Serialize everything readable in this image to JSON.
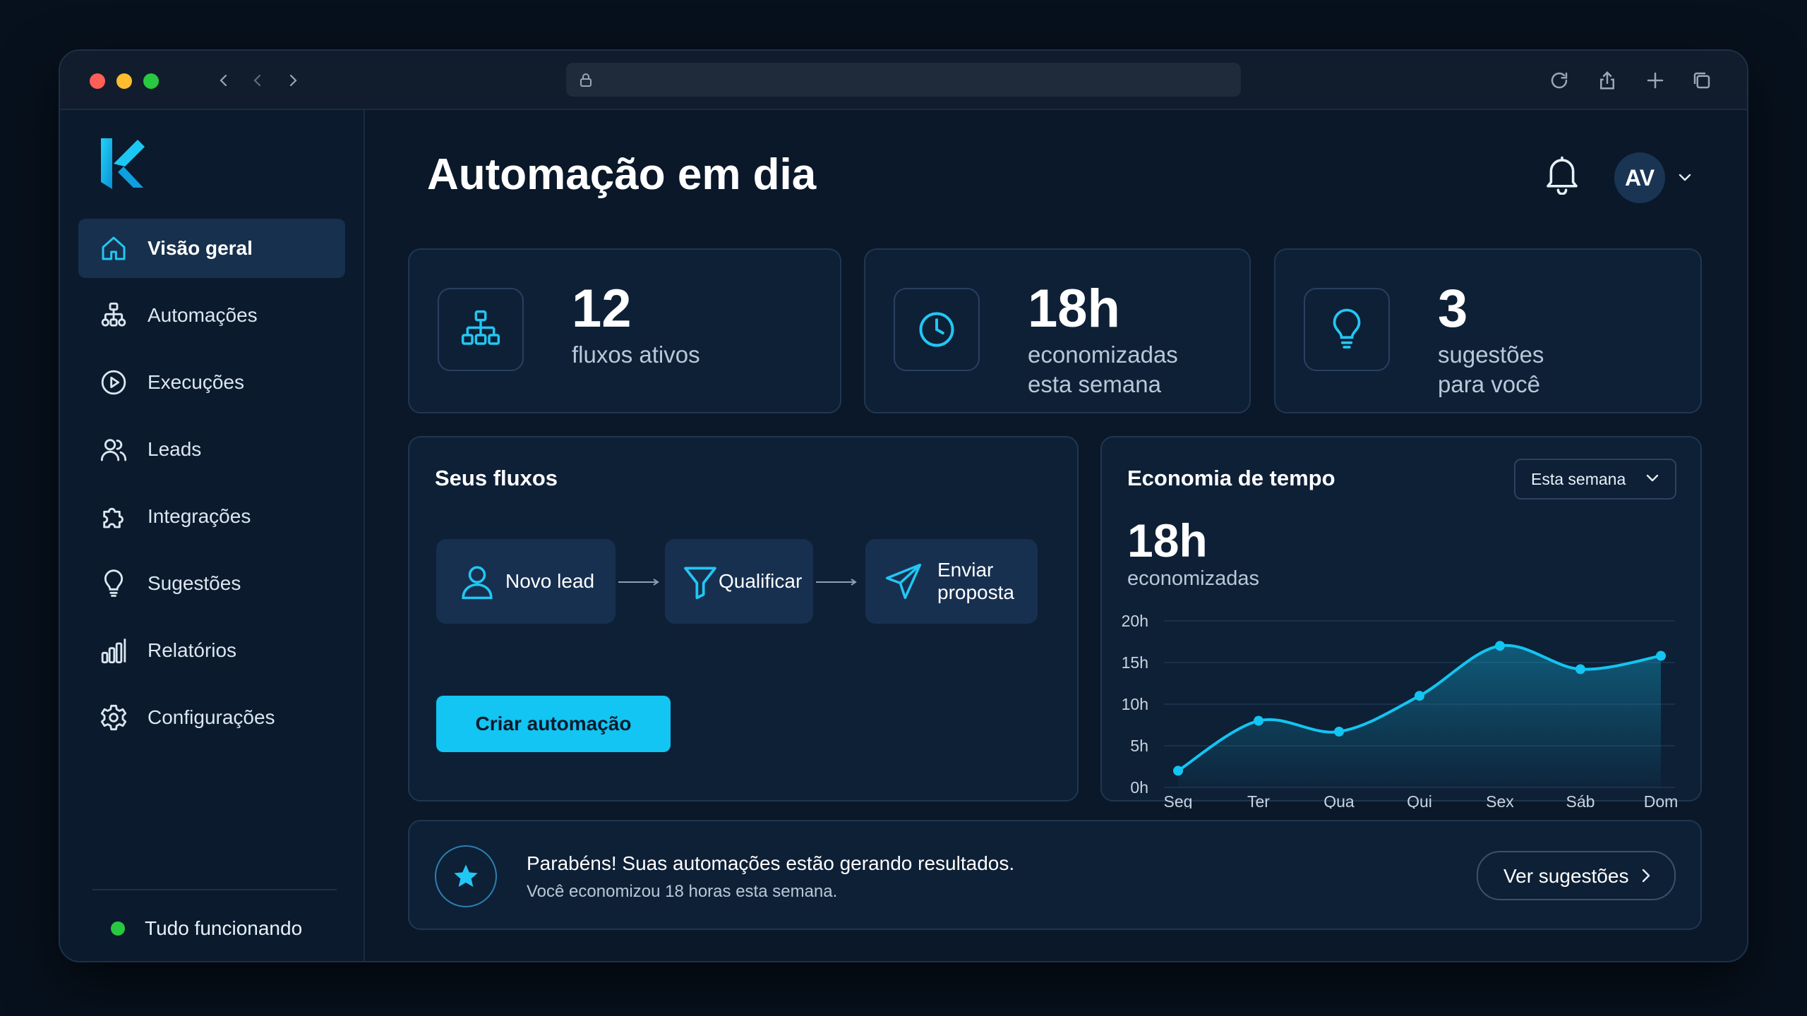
{
  "app": {
    "title": "Automação em dia",
    "user_initials": "AV"
  },
  "sidebar": {
    "items": [
      {
        "label": "Visão geral",
        "icon": "home-icon",
        "active": true
      },
      {
        "label": "Automações",
        "icon": "workflow-icon"
      },
      {
        "label": "Execuções",
        "icon": "play-circle-icon"
      },
      {
        "label": "Leads",
        "icon": "users-icon"
      },
      {
        "label": "Integrações",
        "icon": "puzzle-icon"
      },
      {
        "label": "Sugestões",
        "icon": "lightbulb-icon"
      },
      {
        "label": "Relatórios",
        "icon": "bar-chart-icon"
      },
      {
        "label": "Configurações",
        "icon": "gear-icon"
      }
    ],
    "status": "Tudo funcionando"
  },
  "stats": [
    {
      "value": "12",
      "label": "fluxos ativos",
      "icon": "org-chart-icon"
    },
    {
      "value": "18h",
      "label": "economizadas\nesta semana",
      "icon": "clock-icon"
    },
    {
      "value": "3",
      "label": "sugestões\npara você",
      "icon": "lightbulb-icon"
    }
  ],
  "flows": {
    "title": "Seus fluxos",
    "nodes": [
      {
        "label": "Novo lead",
        "icon": "user-icon"
      },
      {
        "label": "Qualificar",
        "icon": "filter-icon"
      },
      {
        "label": "Enviar\nproposta",
        "icon": "send-icon"
      }
    ],
    "cta": "Criar automação"
  },
  "savings": {
    "title": "Economia de tempo",
    "period": "Esta semana",
    "total": "18h",
    "total_label": "economizadas"
  },
  "chart_data": {
    "type": "area",
    "categories": [
      "Seg",
      "Ter",
      "Qua",
      "Qui",
      "Sex",
      "Sáb",
      "Dom"
    ],
    "values": [
      2,
      8,
      6.7,
      11,
      17,
      14.2,
      15.8
    ],
    "yticks": [
      "0h",
      "5h",
      "10h",
      "15h",
      "20h"
    ],
    "ylim": [
      0,
      20
    ],
    "grid": true,
    "color": "#12c5f2"
  },
  "banner": {
    "title": "Parabéns! Suas automações estão gerando resultados.",
    "subtitle": "Você economizou 18 horas esta semana.",
    "button": "Ver sugestões"
  },
  "colors": {
    "accent": "#12c5f2",
    "background": "#0a182a",
    "card": "#0e2036"
  }
}
